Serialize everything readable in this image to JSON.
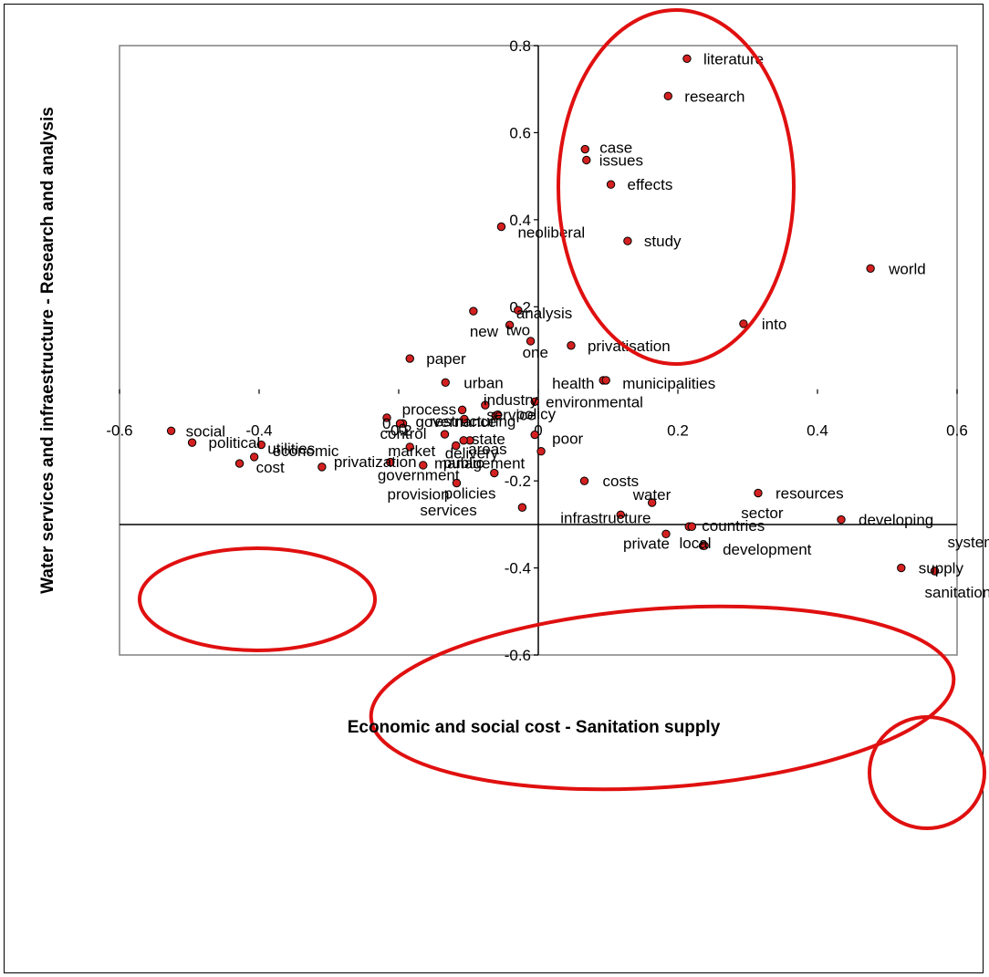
{
  "chart_data": {
    "type": "scatter",
    "title": "",
    "xlabel": "Economic and social cost - Sanitation supply",
    "ylabel": "Water services and infraestructure - Research and analysis",
    "xlim": [
      -0.6,
      0.6
    ],
    "ylim": [
      -0.6,
      0.8
    ],
    "x_ticks": [
      -0.6,
      -0.4,
      -0.2,
      0,
      0.2,
      0.4,
      0.6
    ],
    "x_tick_labels": [
      "-0.6",
      "-0.4",
      "-0.2",
      "0",
      "0.2",
      "0.4",
      "0.6"
    ],
    "y_ticks": [
      -0.6,
      -0.4,
      -0.2,
      0.2,
      0.4,
      0.6,
      0.8
    ],
    "y_tick_labels": [
      "-0.6",
      "-0.4",
      "-0.2",
      "0.2",
      "0.4",
      "0.6",
      "0.8"
    ],
    "grid": false,
    "marker_color": "#d42020",
    "highlight_color": "#e01010",
    "points": [
      {
        "label": "literature",
        "x": 0.213,
        "y": 0.77
      },
      {
        "label": "research",
        "x": 0.186,
        "y": 0.684
      },
      {
        "label": "case",
        "x": 0.067,
        "y": 0.562
      },
      {
        "label": "issues",
        "x": 0.069,
        "y": 0.537
      },
      {
        "label": "effects",
        "x": 0.104,
        "y": 0.481
      },
      {
        "label": "neoliberal",
        "x": -0.053,
        "y": 0.384
      },
      {
        "label": "study",
        "x": 0.128,
        "y": 0.351
      },
      {
        "label": "world",
        "x": 0.476,
        "y": 0.288
      },
      {
        "label": "analysis",
        "x": -0.029,
        "y": 0.192
      },
      {
        "label": "new",
        "x": -0.093,
        "y": 0.19
      },
      {
        "label": "two",
        "x": -0.041,
        "y": 0.158
      },
      {
        "label": "into",
        "x": 0.294,
        "y": 0.161
      },
      {
        "label": "one",
        "x": -0.011,
        "y": 0.121
      },
      {
        "label": "privatisation",
        "x": 0.047,
        "y": 0.111
      },
      {
        "label": "paper",
        "x": -0.184,
        "y": 0.081
      },
      {
        "label": "urban",
        "x": -0.133,
        "y": 0.026
      },
      {
        "label": "health",
        "x": 0.093,
        "y": 0.031
      },
      {
        "label": "municipalities",
        "x": 0.097,
        "y": 0.031
      },
      {
        "label": "industry",
        "x": -0.076,
        "y": -0.026
      },
      {
        "label": "environmental",
        "x": -0.005,
        "y": -0.018
      },
      {
        "label": "process",
        "x": -0.109,
        "y": -0.037
      },
      {
        "label": "service",
        "x": -0.061,
        "y": -0.05
      },
      {
        "label": "policy",
        "x": -0.058,
        "y": -0.048
      },
      {
        "label": "restructuring",
        "x": -0.106,
        "y": -0.058
      },
      {
        "label": "0",
        "x": -0.217,
        "y": -0.055
      },
      {
        "label": "0",
        "x": -0.194,
        "y": -0.068
      },
      {
        "label": "governance",
        "x": -0.198,
        "y": -0.068
      },
      {
        "label": "social",
        "x": -0.526,
        "y": -0.085
      },
      {
        "label": "political",
        "x": -0.496,
        "y": -0.112
      },
      {
        "label": "utilities",
        "x": -0.397,
        "y": -0.117
      },
      {
        "label": "economic",
        "x": -0.407,
        "y": -0.145
      },
      {
        "label": "cost",
        "x": -0.428,
        "y": -0.16
      },
      {
        "label": "privatization",
        "x": -0.31,
        "y": -0.168
      },
      {
        "label": "government",
        "x": -0.212,
        "y": -0.157
      },
      {
        "label": "control",
        "x": -0.134,
        "y": -0.093
      },
      {
        "label": "market",
        "x": -0.184,
        "y": -0.122
      },
      {
        "label": "state",
        "x": -0.098,
        "y": -0.107
      },
      {
        "label": "delivery",
        "x": -0.118,
        "y": -0.119
      },
      {
        "label": "poor",
        "x": -0.005,
        "y": -0.094
      },
      {
        "label": "management",
        "x": 0.004,
        "y": -0.132
      },
      {
        "label": "areas",
        "x": -0.107,
        "y": -0.107
      },
      {
        "label": "public",
        "x": -0.165,
        "y": -0.164
      },
      {
        "label": "policies",
        "x": -0.063,
        "y": -0.182
      },
      {
        "label": "provision",
        "x": -0.117,
        "y": -0.205
      },
      {
        "label": "services",
        "x": -0.023,
        "y": -0.261
      },
      {
        "label": "costs",
        "x": 0.066,
        "y": -0.2
      },
      {
        "label": "water",
        "x": 0.163,
        "y": -0.25
      },
      {
        "label": "infrastructure",
        "x": 0.118,
        "y": -0.278
      },
      {
        "label": "resources",
        "x": 0.315,
        "y": -0.228
      },
      {
        "label": "private",
        "x": 0.183,
        "y": -0.322
      },
      {
        "label": "sector",
        "x": 0.216,
        "y": -0.305
      },
      {
        "label": "countries",
        "x": 0.22,
        "y": -0.305
      },
      {
        "label": "developing",
        "x": 0.434,
        "y": -0.289
      },
      {
        "label": "local",
        "x": 0.236,
        "y": -0.349
      },
      {
        "label": "development",
        "x": 0.238,
        "y": -0.349
      },
      {
        "label": "systems",
        "x": 0.568,
        "y": -0.407
      },
      {
        "label": "supply",
        "x": 0.52,
        "y": -0.4
      },
      {
        "label": "sanitation",
        "x": 0.568,
        "y": -0.407
      }
    ]
  }
}
